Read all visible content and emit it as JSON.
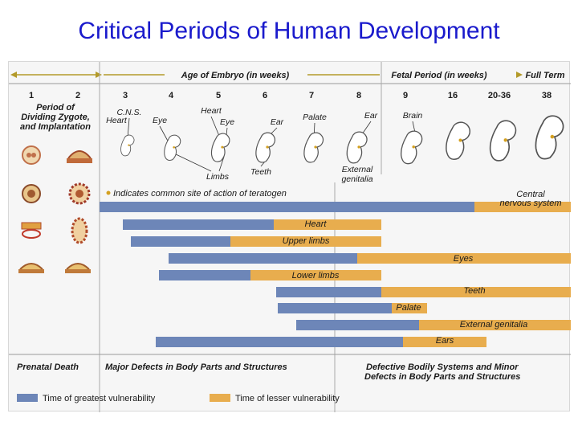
{
  "title": "Critical Periods of Human Development",
  "header": {
    "embryo_label": "Age of Embryo (in weeks)",
    "fetal_label": "Fetal Period (in weeks)",
    "full_term_label": "Full Term"
  },
  "weeks": [
    "1",
    "2",
    "3",
    "4",
    "5",
    "6",
    "7",
    "8",
    "9",
    "16",
    "20-36",
    "38"
  ],
  "period_label": [
    "Period of",
    "Dividing Zygote,",
    "and Implantation"
  ],
  "organ_labels": {
    "cns": "C.N.S.",
    "heart_a": "Heart",
    "heart_b": "Heart",
    "eye_a": "Eye",
    "eye_b": "Eye",
    "ear_a": "Ear",
    "ear_b": "Ear",
    "palate": "Palate",
    "brain": "Brain",
    "limbs": "Limbs",
    "teeth": "Teeth",
    "external_genitalia": [
      "External",
      "genitalia"
    ]
  },
  "teratogen_note": "Indicates common site of action of teratogen",
  "bars": [
    {
      "label": "Central nervous system",
      "label_lines": [
        "Central",
        "nervous system"
      ]
    },
    {
      "label": "Heart"
    },
    {
      "label": "Upper limbs"
    },
    {
      "label": "Eyes"
    },
    {
      "label": "Lower limbs"
    },
    {
      "label": "Teeth"
    },
    {
      "label": "Palate"
    },
    {
      "label": "External genitalia"
    },
    {
      "label": "Ears"
    }
  ],
  "footer": {
    "prenatal": "Prenatal Death",
    "major": "Major Defects in Body Parts and Structures",
    "defective": [
      "Defective Bodily Systems and Minor",
      "Defects in Body Parts and Structures"
    ]
  },
  "legend": {
    "greatest": "Time of greatest vulnerability",
    "lesser": "Time of lesser vulnerability"
  },
  "colors": {
    "title": "#1a1acc",
    "greatest": "#6d86b8",
    "lesser": "#e8ad4e",
    "header_text": "#1a1a1a"
  },
  "icons": [
    "zygote-icon",
    "embryo-icon"
  ]
}
